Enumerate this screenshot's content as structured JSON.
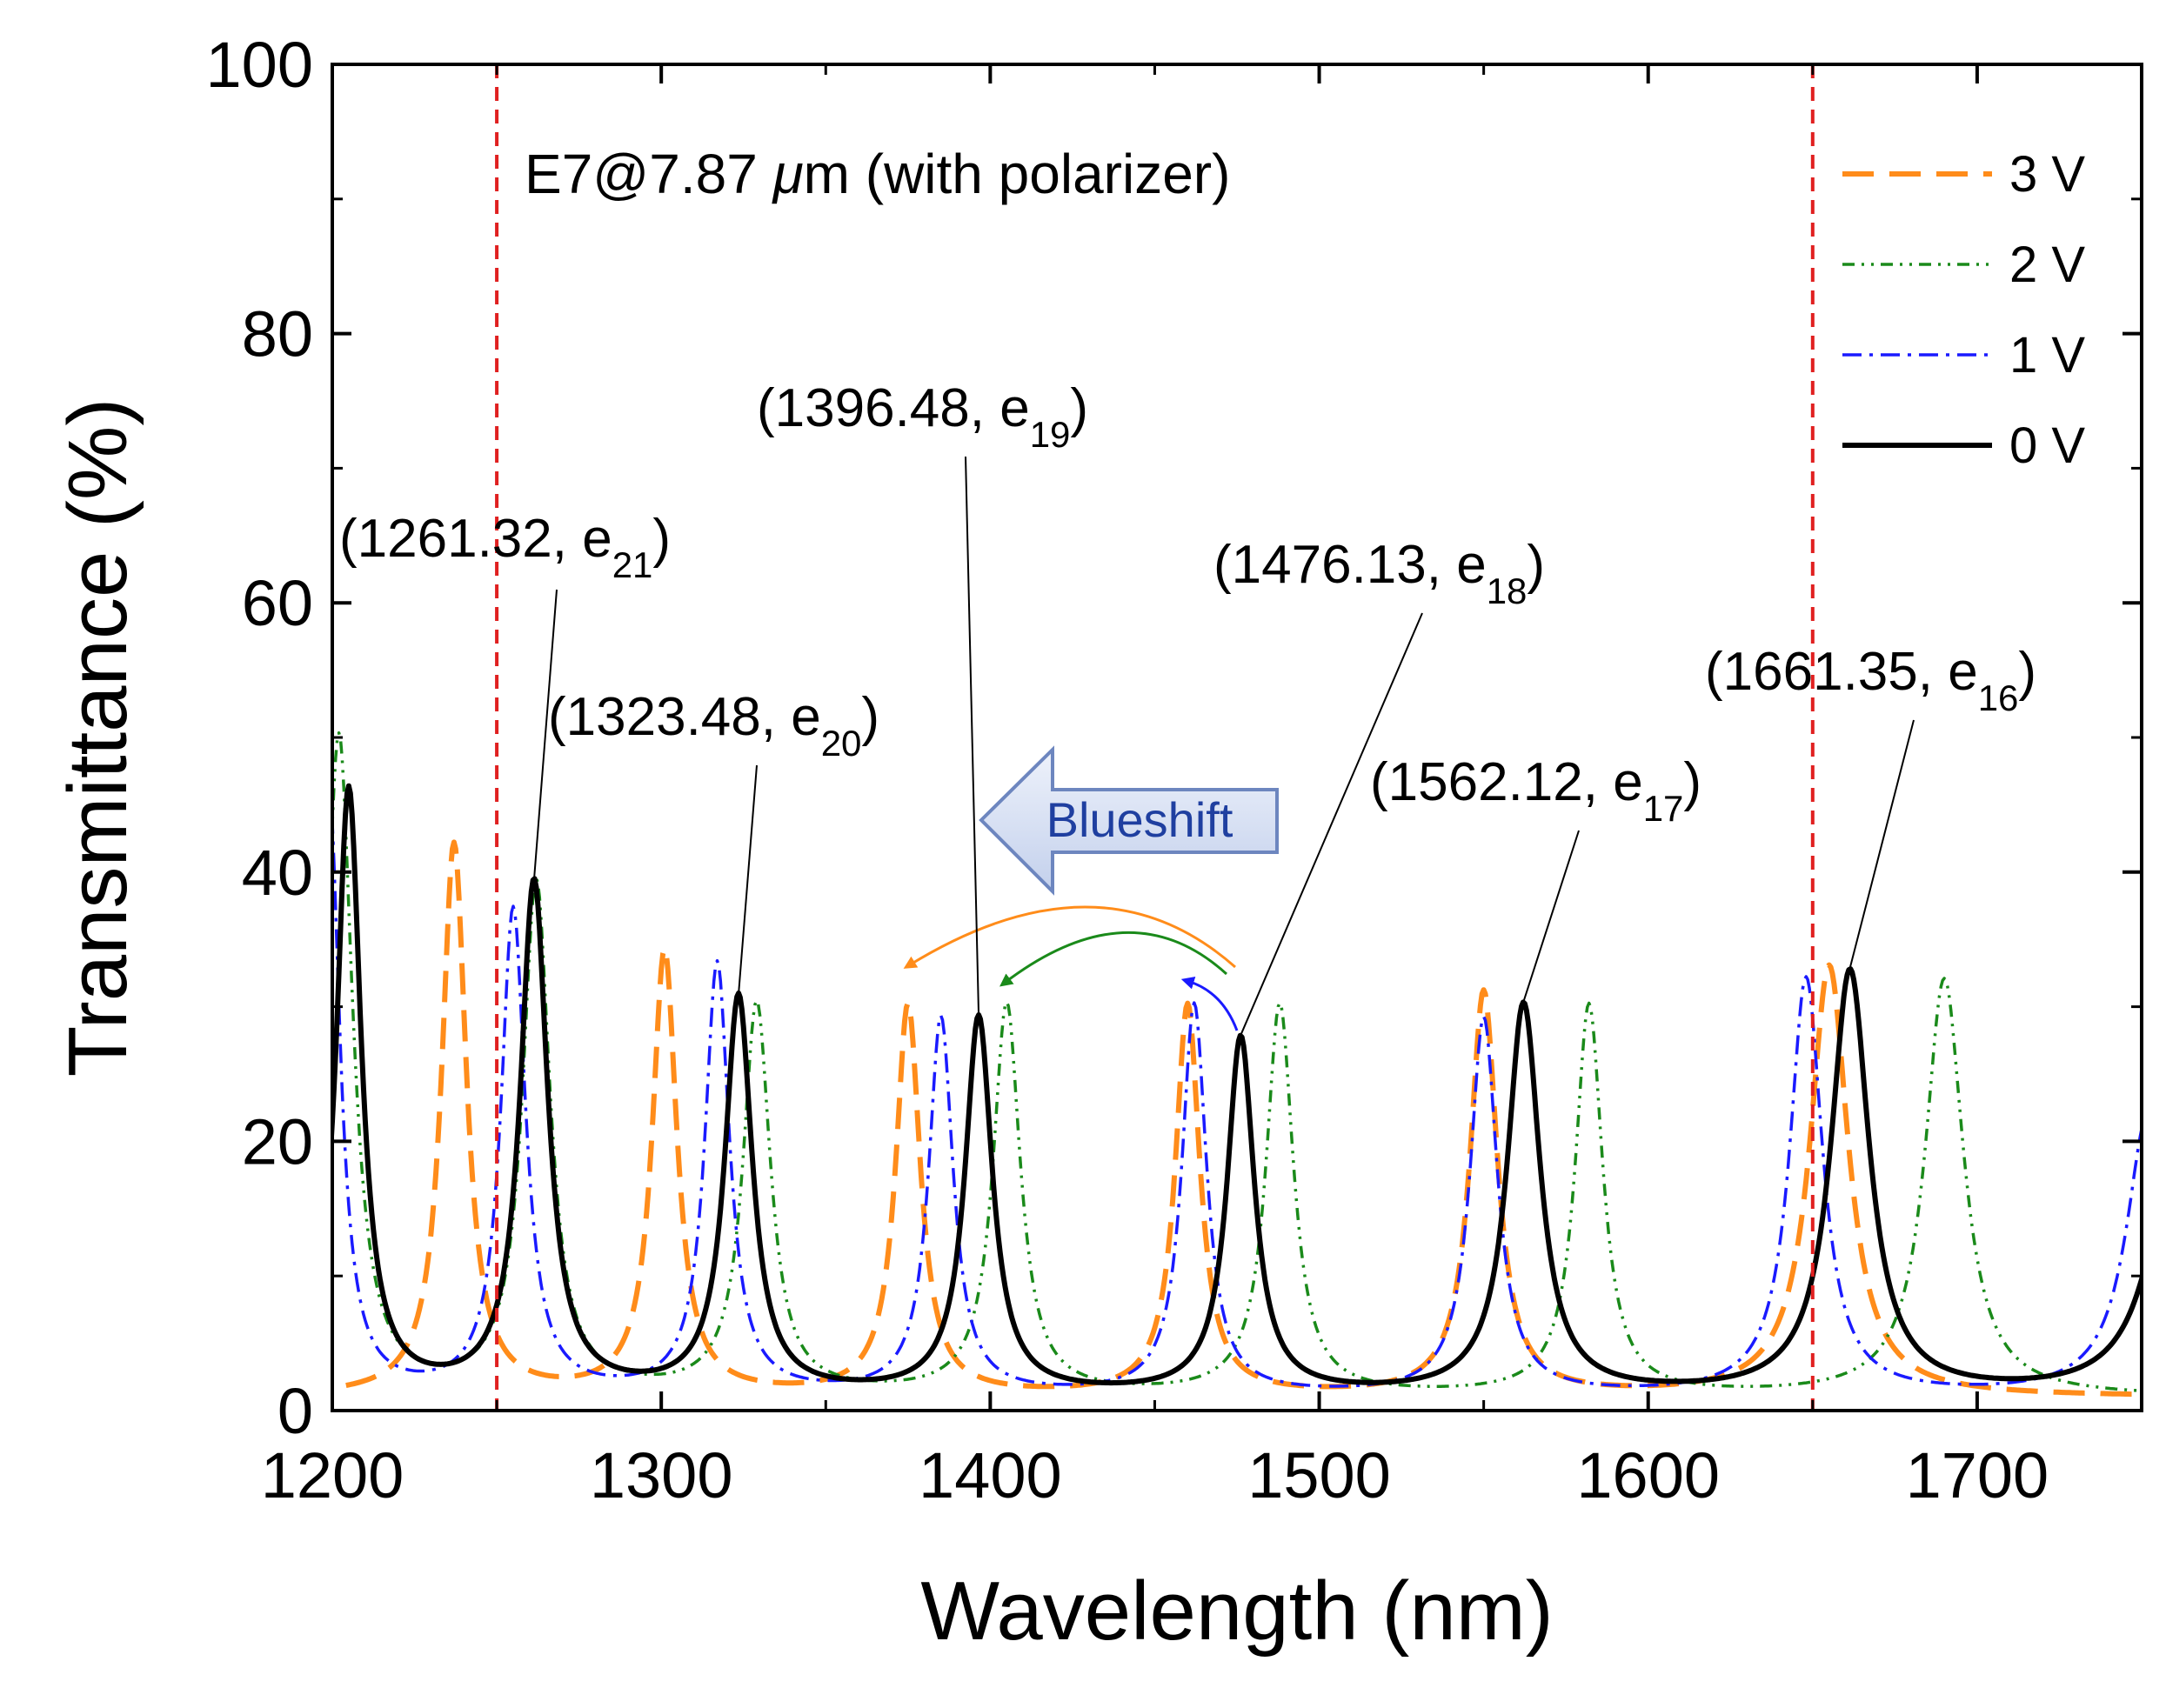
{
  "chart_data": {
    "type": "line",
    "title": "E7@7.87 μm (with polarizer)",
    "title_prefix": "E7@7.87 ",
    "title_mu": "μ",
    "title_suffix": "m (with polarizer)",
    "xlabel": "Wavelength (nm)",
    "ylabel": "Transmittance (%)",
    "xlim": [
      1200,
      1750
    ],
    "ylim": [
      0,
      100
    ],
    "x_ticks": [
      "1200",
      "1300",
      "1400",
      "1500",
      "1600",
      "1700"
    ],
    "y_ticks": [
      "0",
      "20",
      "40",
      "60",
      "80",
      "100"
    ],
    "reference_lines_x": [
      1250,
      1650
    ],
    "legend_position": "top-right",
    "series": [
      {
        "name": "3 V",
        "color": "#ff8c1a",
        "style": "dashed",
        "base": 1.0,
        "peaks": [
          [
            1237,
            42,
            4.5
          ],
          [
            1301,
            34,
            4.5
          ],
          [
            1375,
            30,
            4.5
          ],
          [
            1460,
            30,
            4.5
          ],
          [
            1550,
            31,
            5
          ],
          [
            1655,
            33,
            7
          ]
        ]
      },
      {
        "name": "2 V",
        "color": "#1a8a1a",
        "style": "dash-dot-dot",
        "base": 1.0,
        "peaks": [
          [
            1202,
            50,
            5
          ],
          [
            1262,
            39,
            5
          ],
          [
            1329,
            30,
            5
          ],
          [
            1405,
            30,
            5
          ],
          [
            1488,
            30,
            5
          ],
          [
            1582,
            30,
            5
          ],
          [
            1690,
            32,
            7
          ]
        ]
      },
      {
        "name": "1 V",
        "color": "#1a1aff",
        "style": "dash-dot",
        "base": 1.0,
        "peaks": [
          [
            1199,
            46,
            4
          ],
          [
            1255,
            37,
            4.5
          ],
          [
            1317,
            33,
            4.5
          ],
          [
            1385,
            29,
            4.5
          ],
          [
            1462,
            30,
            4.5
          ],
          [
            1550,
            29,
            5
          ],
          [
            1648,
            32,
            6
          ],
          [
            1752,
            22,
            8
          ]
        ]
      },
      {
        "name": "0 V",
        "color": "#000000",
        "style": "solid",
        "base": 1.0,
        "peaks": [
          [
            1205,
            46,
            4.5
          ],
          [
            1261.32,
            39,
            5
          ],
          [
            1323.48,
            30.5,
            5
          ],
          [
            1396.48,
            29,
            5
          ],
          [
            1476.13,
            27.5,
            5
          ],
          [
            1562.12,
            30,
            6
          ],
          [
            1661.35,
            32.5,
            7
          ],
          [
            1760,
            18,
            10
          ]
        ]
      }
    ],
    "annotations": [
      {
        "label": "1261.32",
        "sub": "21",
        "prefix": "(",
        "mid": ", e",
        "suffix": ")",
        "point": [
          1261.32,
          39
        ]
      },
      {
        "label": "1323.48",
        "sub": "20",
        "prefix": "(",
        "mid": ", e",
        "suffix": ")",
        "point": [
          1323.48,
          30.5
        ]
      },
      {
        "label": "1396.48",
        "sub": "19",
        "prefix": "(",
        "mid": ", e",
        "suffix": ")",
        "point": [
          1396.48,
          29
        ]
      },
      {
        "label": "1476.13",
        "sub": "18",
        "prefix": "(",
        "mid": ", e",
        "suffix": ")",
        "point": [
          1476.13,
          27.5
        ]
      },
      {
        "label": "1562.12",
        "sub": "17",
        "prefix": "(",
        "mid": ", e",
        "suffix": ")",
        "point": [
          1562.12,
          30
        ]
      },
      {
        "label": "1661.35",
        "sub": "16",
        "prefix": "(",
        "mid": ", e",
        "suffix": ")",
        "point": [
          1661.35,
          32.5
        ]
      }
    ],
    "shift_arrow_label": "Blueshift"
  }
}
